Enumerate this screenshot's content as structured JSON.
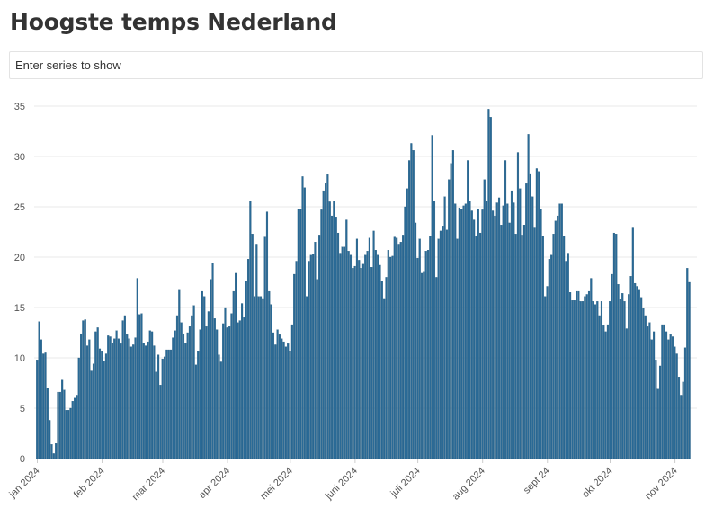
{
  "page": {
    "title": "Hoogste temps Nederland",
    "search_placeholder": "Enter series to show"
  },
  "colors": {
    "bar": "#2a6a96",
    "bar_stroke": "#1f5578",
    "grid": "#e8e8e8",
    "axis": "#cccccc"
  },
  "chart_data": {
    "type": "bar",
    "title": "Hoogste temps Nederland",
    "xlabel": "",
    "ylabel": "",
    "ylim": [
      0,
      35
    ],
    "y_ticks": [
      0,
      5,
      10,
      15,
      20,
      25,
      30,
      35
    ],
    "grid": true,
    "legend": "none",
    "x_start": "2024-01-01",
    "x_tick_labels": [
      {
        "label": "jan 2024",
        "date": "2024-01-01"
      },
      {
        "label": "feb 2024",
        "date": "2024-02-01"
      },
      {
        "label": "mar 2024",
        "date": "2024-03-01"
      },
      {
        "label": "apr 2024",
        "date": "2024-04-01"
      },
      {
        "label": "mei 2024",
        "date": "2024-05-01"
      },
      {
        "label": "juni 2024",
        "date": "2024-06-01"
      },
      {
        "label": "juli 2024",
        "date": "2024-07-01"
      },
      {
        "label": "aug 2024",
        "date": "2024-08-01"
      },
      {
        "label": "sept 24",
        "date": "2024-09-01"
      },
      {
        "label": "okt 2024",
        "date": "2024-10-01"
      },
      {
        "label": "nov 2024",
        "date": "2024-11-01"
      }
    ],
    "series": [
      {
        "values": [
          9.8,
          13.6,
          11.8,
          10.4,
          10.5,
          7.0,
          3.8,
          1.4,
          0.5,
          1.5,
          6.6,
          6.6,
          7.8,
          6.8,
          4.8,
          4.8,
          5.0,
          5.7,
          6.0,
          6.3,
          10.0,
          12.4,
          13.7,
          13.8,
          11.2,
          11.8,
          8.7,
          9.4,
          12.6,
          13.0,
          10.9,
          10.7,
          9.7,
          10.4,
          12.2,
          12.1,
          11.5,
          11.9,
          12.7,
          11.9,
          11.4,
          13.7,
          14.2,
          12.3,
          11.9,
          11.1,
          11.3,
          12.0,
          17.9,
          14.3,
          14.4,
          11.5,
          11.2,
          11.6,
          12.7,
          12.6,
          11.2,
          8.6,
          10.3,
          7.3,
          9.9,
          10.1,
          10.8,
          10.8,
          10.8,
          12.0,
          12.7,
          14.2,
          16.8,
          13.5,
          12.4,
          11.5,
          12.5,
          13.1,
          14.2,
          15.2,
          9.3,
          10.7,
          12.8,
          16.6,
          16.1,
          13.1,
          14.6,
          17.8,
          19.4,
          13.9,
          12.8,
          10.3,
          9.6,
          13.4,
          15.0,
          13.0,
          13.1,
          14.4,
          16.6,
          18.4,
          13.5,
          13.7,
          15.4,
          14.0,
          17.6,
          19.8,
          25.6,
          22.3,
          16.1,
          21.3,
          16.1,
          16.1,
          15.9,
          22.0,
          24.5,
          16.6,
          15.3,
          12.5,
          11.3,
          12.8,
          12.3,
          11.9,
          11.6,
          11.1,
          11.4,
          10.7,
          13.3,
          18.3,
          19.6,
          24.8,
          24.8,
          28.0,
          26.9,
          16.1,
          19.6,
          20.2,
          20.3,
          21.5,
          17.8,
          22.2,
          24.7,
          26.6,
          27.3,
          28.2,
          25.5,
          24.1,
          25.6,
          24.0,
          22.4,
          20.4,
          21.0,
          21.0,
          23.7,
          20.6,
          20.2,
          18.9,
          19.1,
          21.8,
          19.7,
          18.9,
          19.3,
          20.2,
          20.6,
          21.9,
          19.0,
          22.6,
          20.7,
          20.2,
          19.2,
          17.6,
          15.9,
          18.0,
          20.7,
          20.0,
          20.1,
          22.0,
          21.9,
          21.3,
          21.5,
          22.2,
          25.0,
          26.8,
          29.6,
          31.3,
          30.6,
          23.4,
          19.9,
          21.8,
          18.4,
          18.6,
          20.6,
          20.7,
          22.1,
          32.1,
          25.6,
          18.0,
          21.8,
          22.6,
          23.1,
          26.0,
          22.7,
          27.7,
          29.3,
          30.6,
          25.3,
          21.8,
          24.9,
          24.8,
          25.1,
          25.3,
          29.6,
          25.6,
          24.6,
          23.7,
          22.1,
          24.8,
          22.4,
          24.7,
          27.7,
          25.6,
          34.7,
          33.9,
          24.6,
          24.1,
          25.4,
          25.9,
          23.2,
          25.1,
          29.6,
          25.3,
          23.4,
          26.6,
          25.4,
          22.3,
          30.4,
          26.8,
          22.2,
          23.2,
          27.3,
          32.2,
          28.3,
          26.0,
          22.9,
          28.8,
          28.5,
          24.8,
          22.1,
          16.1,
          17.1,
          19.8,
          20.2,
          22.3,
          23.6,
          24.1,
          25.3,
          25.3,
          22.1,
          19.6,
          20.4,
          16.5,
          15.7,
          15.7,
          16.6,
          16.6,
          15.6,
          15.6,
          16.1,
          16.3,
          16.6,
          17.9,
          15.6,
          15.3,
          15.6,
          14.2,
          15.6,
          13.2,
          12.6,
          13.3,
          15.6,
          18.3,
          22.4,
          22.3,
          17.3,
          15.8,
          16.4,
          15.6,
          12.9,
          16.3,
          18.1,
          22.9,
          17.4,
          17.1,
          16.8,
          16.0,
          14.9,
          14.2,
          13.1,
          13.5,
          11.8,
          12.6,
          9.8,
          6.9,
          9.2,
          13.3,
          13.3,
          12.6,
          11.8,
          12.3,
          12.1,
          11.1,
          10.4,
          8.1,
          6.3,
          7.6,
          11.0,
          18.9,
          17.5
        ]
      }
    ]
  }
}
